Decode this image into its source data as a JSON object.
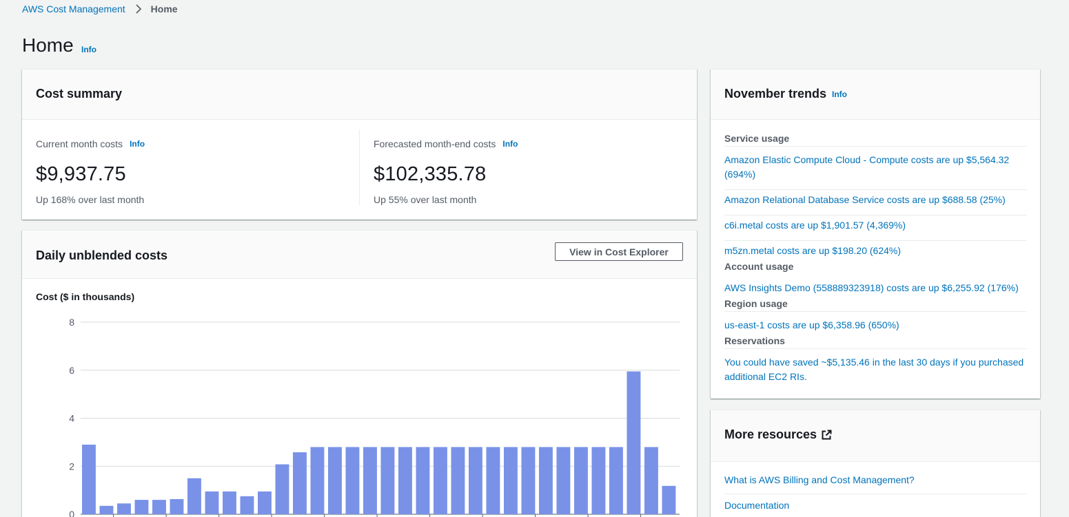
{
  "breadcrumb": {
    "root": "AWS Cost Management",
    "current": "Home"
  },
  "header": {
    "title": "Home",
    "info": "Info"
  },
  "cost_summary": {
    "title": "Cost summary",
    "current": {
      "label": "Current month costs",
      "info": "Info",
      "value": "$9,937.75",
      "delta": "Up 168% over last month"
    },
    "forecast": {
      "label": "Forecasted month-end costs",
      "info": "Info",
      "value": "$102,335.78",
      "delta": "Up 55% over last month"
    }
  },
  "daily_costs": {
    "title": "Daily unblended costs",
    "button": "View in Cost Explorer",
    "axis_title": "Cost ($ in thousands)"
  },
  "chart_data": {
    "type": "bar",
    "title": "Daily unblended costs",
    "ylabel": "Cost ($ in thousands)",
    "xlabel": "",
    "ylim": [
      0,
      8
    ],
    "yticks": [
      0,
      2,
      4,
      6,
      8
    ],
    "grid": true,
    "color": "#7992e8",
    "values": [
      2.9,
      0.35,
      0.45,
      0.6,
      0.6,
      0.63,
      1.5,
      0.95,
      0.95,
      0.75,
      0.95,
      2.08,
      2.58,
      2.8,
      2.8,
      2.8,
      2.8,
      2.8,
      2.8,
      2.8,
      2.8,
      2.8,
      2.8,
      2.8,
      2.8,
      2.8,
      2.8,
      2.8,
      2.8,
      2.8,
      2.8,
      5.95,
      2.8,
      1.18
    ]
  },
  "trends": {
    "title": "November trends",
    "info": "Info",
    "sections": {
      "service": {
        "label": "Service usage",
        "items": [
          "Amazon Elastic Compute Cloud - Compute costs are up $5,564.32 (694%)",
          "Amazon Relational Database Service costs are up $688.58 (25%)",
          "c6i.metal costs are up $1,901.57 (4,369%)",
          "m5zn.metal costs are up $198.20 (624%)"
        ]
      },
      "account": {
        "label": "Account usage",
        "items": [
          "AWS Insights Demo (558889323918) costs are up $6,255.92 (176%)"
        ]
      },
      "region": {
        "label": "Region usage",
        "items": [
          "us-east-1 costs are up $6,358.96 (650%)"
        ]
      },
      "reservations": {
        "label": "Reservations",
        "items": [
          "You could have saved ~$5,135.46 in the last 30 days if you purchased additional EC2 RIs."
        ]
      }
    }
  },
  "resources": {
    "title": "More resources",
    "links": [
      "What is AWS Billing and Cost Management?",
      "Documentation"
    ]
  },
  "colors": {
    "link": "#0073bb",
    "bar": "#7992e8",
    "background": "#f2f3f3"
  },
  "icons": {
    "breadcrumb_separator": "chevron-right-icon",
    "external": "external-link-icon"
  }
}
